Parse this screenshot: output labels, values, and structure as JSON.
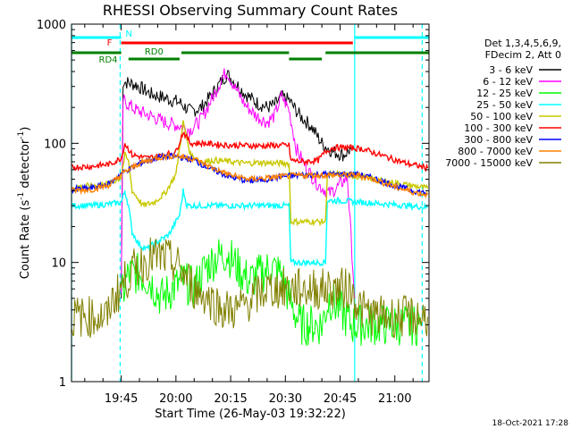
{
  "chart_data": {
    "type": "line",
    "title": "RHESSI Observing Summary Count Rates",
    "xlabel": "Start Time (26-May-03 19:32:22)",
    "ylabel_main": "Count Rate (s",
    "ylabel_sup1": "-1",
    "ylabel_mid": " detector",
    "ylabel_sup2": "-1",
    "ylabel_end": ")",
    "y_scale": "log",
    "ylim": [
      1,
      1000
    ],
    "x_range_minutes": [
      -13.63,
      84.37
    ],
    "x_tick_labels": [
      {
        "label": "19:45",
        "t": 0
      },
      {
        "label": "20:00",
        "t": 15
      },
      {
        "label": "20:15",
        "t": 30
      },
      {
        "label": "20:30",
        "t": 45
      },
      {
        "label": "20:45",
        "t": 60
      },
      {
        "label": "21:00",
        "t": 75
      }
    ],
    "y_tick_labels": [
      {
        "label": "1",
        "v": 1
      },
      {
        "label": "10",
        "v": 10
      },
      {
        "label": "100",
        "v": 100
      },
      {
        "label": "1000",
        "v": 1000
      }
    ],
    "legend_header": [
      "Det 1,3,4,5,6,9,",
      "FDecim 2, Att 0"
    ],
    "series": [
      {
        "name": "3 - 6 keV",
        "color": "#000000",
        "points": [
          [
            0,
            5
          ],
          [
            0.5,
            330
          ],
          [
            4,
            310
          ],
          [
            8,
            260
          ],
          [
            12,
            240
          ],
          [
            16,
            220
          ],
          [
            19,
            185
          ],
          [
            22,
            200
          ],
          [
            25,
            260
          ],
          [
            28,
            350
          ],
          [
            29,
            380
          ],
          [
            31,
            330
          ],
          [
            34,
            260
          ],
          [
            37,
            220
          ],
          [
            40,
            200
          ],
          [
            42,
            210
          ],
          [
            44,
            245
          ],
          [
            46,
            230
          ],
          [
            49,
            170
          ],
          [
            52,
            140
          ],
          [
            55,
            100
          ],
          [
            58,
            85
          ],
          [
            61,
            80
          ],
          [
            63,
            90
          ]
        ]
      },
      {
        "name": "6 - 12 keV",
        "color": "#ff00ff",
        "points": [
          [
            0,
            5
          ],
          [
            0.5,
            230
          ],
          [
            4,
            190
          ],
          [
            8,
            170
          ],
          [
            12,
            150
          ],
          [
            16,
            140
          ],
          [
            19,
            130
          ],
          [
            22,
            160
          ],
          [
            25,
            240
          ],
          [
            28,
            370
          ],
          [
            29,
            400
          ],
          [
            31,
            300
          ],
          [
            34,
            210
          ],
          [
            37,
            170
          ],
          [
            40,
            150
          ],
          [
            42,
            170
          ],
          [
            44,
            250
          ],
          [
            46,
            190
          ],
          [
            48,
            90
          ],
          [
            51,
            60
          ],
          [
            54,
            45
          ],
          [
            57,
            38
          ],
          [
            59,
            42
          ],
          [
            62,
            52
          ],
          [
            64,
            5
          ]
        ]
      },
      {
        "name": "12 - 25 keV",
        "color": "#00ff00",
        "points": [
          [
            0,
            5
          ],
          [
            2,
            8
          ],
          [
            5,
            8
          ],
          [
            8,
            7
          ],
          [
            11,
            5
          ],
          [
            14,
            6
          ],
          [
            17,
            7
          ],
          [
            20,
            6
          ],
          [
            23,
            9
          ],
          [
            26,
            11
          ],
          [
            29,
            12
          ],
          [
            32,
            9
          ],
          [
            35,
            7
          ],
          [
            38,
            8
          ],
          [
            41,
            9
          ],
          [
            44,
            8
          ],
          [
            46,
            5
          ],
          [
            49,
            3
          ],
          [
            52,
            3
          ],
          [
            55,
            3
          ],
          [
            57,
            5
          ],
          [
            60,
            4
          ],
          [
            63,
            3
          ],
          [
            66,
            3
          ],
          [
            70,
            3
          ],
          [
            74,
            3
          ],
          [
            78,
            3
          ],
          [
            82,
            3
          ]
        ]
      },
      {
        "name": "25 - 50 keV",
        "color": "#00ffff",
        "points": [
          [
            -13.5,
            30
          ],
          [
            -8,
            30
          ],
          [
            -3,
            31
          ],
          [
            0,
            32
          ],
          [
            1,
            40
          ],
          [
            2,
            30
          ],
          [
            3,
            18
          ],
          [
            5,
            14
          ],
          [
            7,
            13
          ],
          [
            10,
            15
          ],
          [
            13,
            17
          ],
          [
            16,
            25
          ],
          [
            17,
            40
          ],
          [
            18,
            30
          ],
          [
            20,
            30
          ],
          [
            24,
            30
          ],
          [
            28,
            30
          ],
          [
            32,
            30
          ],
          [
            36,
            30
          ],
          [
            40,
            30
          ],
          [
            44,
            30
          ],
          [
            46,
            30
          ],
          [
            46.5,
            10
          ],
          [
            50,
            10
          ],
          [
            54,
            10
          ],
          [
            56,
            10
          ],
          [
            56.5,
            33
          ],
          [
            60,
            33
          ],
          [
            66,
            32
          ],
          [
            72,
            31
          ],
          [
            78,
            30
          ],
          [
            84,
            29
          ]
        ]
      },
      {
        "name": "50 - 100 keV",
        "color": "#c8c800",
        "points": [
          [
            -13.5,
            43
          ],
          [
            -8,
            44
          ],
          [
            -3,
            46
          ],
          [
            0,
            52
          ],
          [
            1,
            80
          ],
          [
            2,
            70
          ],
          [
            3,
            40
          ],
          [
            6,
            30
          ],
          [
            9,
            32
          ],
          [
            12,
            38
          ],
          [
            15,
            55
          ],
          [
            17,
            150
          ],
          [
            19,
            80
          ],
          [
            22,
            70
          ],
          [
            26,
            72
          ],
          [
            30,
            70
          ],
          [
            34,
            68
          ],
          [
            38,
            69
          ],
          [
            42,
            68
          ],
          [
            46,
            68
          ],
          [
            46.5,
            22
          ],
          [
            51,
            22
          ],
          [
            54,
            22
          ],
          [
            56,
            22
          ],
          [
            56.5,
            55
          ],
          [
            60,
            55
          ],
          [
            66,
            52
          ],
          [
            72,
            48
          ],
          [
            78,
            45
          ],
          [
            84,
            42
          ]
        ]
      },
      {
        "name": "100 - 300 keV",
        "color": "#ff0000",
        "points": [
          [
            -13.5,
            63
          ],
          [
            -8,
            64
          ],
          [
            -3,
            67
          ],
          [
            0,
            75
          ],
          [
            1,
            100
          ],
          [
            3,
            80
          ],
          [
            7,
            75
          ],
          [
            12,
            80
          ],
          [
            15,
            85
          ],
          [
            17,
            125
          ],
          [
            19,
            100
          ],
          [
            22,
            100
          ],
          [
            26,
            98
          ],
          [
            30,
            96
          ],
          [
            34,
            96
          ],
          [
            38,
            95
          ],
          [
            42,
            96
          ],
          [
            46,
            96
          ],
          [
            46.5,
            72
          ],
          [
            50,
            70
          ],
          [
            54,
            72
          ],
          [
            56,
            85
          ],
          [
            58,
            92
          ],
          [
            62,
            92
          ],
          [
            66,
            90
          ],
          [
            72,
            78
          ],
          [
            78,
            68
          ],
          [
            84,
            62
          ]
        ]
      },
      {
        "name": "300 - 800 keV",
        "color": "#0000ff",
        "points": [
          [
            -13.5,
            41
          ],
          [
            -8,
            42
          ],
          [
            -3,
            46
          ],
          [
            0,
            56
          ],
          [
            5,
            68
          ],
          [
            10,
            76
          ],
          [
            15,
            78
          ],
          [
            20,
            72
          ],
          [
            25,
            60
          ],
          [
            30,
            52
          ],
          [
            35,
            48
          ],
          [
            40,
            50
          ],
          [
            45,
            53
          ],
          [
            50,
            54
          ],
          [
            55,
            55
          ],
          [
            60,
            55
          ],
          [
            65,
            55
          ],
          [
            70,
            50
          ],
          [
            75,
            44
          ],
          [
            80,
            40
          ],
          [
            84,
            38
          ]
        ]
      },
      {
        "name": "800 - 7000 keV",
        "color": "#ff8000",
        "points": [
          [
            -13.5,
            40
          ],
          [
            -8,
            41
          ],
          [
            -3,
            45
          ],
          [
            0,
            55
          ],
          [
            5,
            68
          ],
          [
            10,
            76
          ],
          [
            15,
            79
          ],
          [
            20,
            74
          ],
          [
            25,
            62
          ],
          [
            30,
            54
          ],
          [
            35,
            50
          ],
          [
            40,
            51
          ],
          [
            45,
            53
          ],
          [
            50,
            54
          ],
          [
            55,
            54
          ],
          [
            60,
            54
          ],
          [
            65,
            54
          ],
          [
            70,
            49
          ],
          [
            75,
            43
          ],
          [
            80,
            39
          ],
          [
            84,
            37
          ]
        ]
      },
      {
        "name": "7000 - 15000 keV",
        "color": "#808000",
        "points": [
          [
            -13.5,
            3.5
          ],
          [
            -6,
            3.5
          ],
          [
            -3.5,
            3.5
          ],
          [
            -3,
            4.5
          ],
          [
            -1,
            5.5
          ],
          [
            1,
            7
          ],
          [
            4,
            9
          ],
          [
            8,
            11
          ],
          [
            12,
            11
          ],
          [
            16,
            9
          ],
          [
            20,
            6
          ],
          [
            24,
            5
          ],
          [
            28,
            4
          ],
          [
            32,
            4
          ],
          [
            36,
            5
          ],
          [
            40,
            6
          ],
          [
            44,
            6
          ],
          [
            48,
            6
          ],
          [
            52,
            6
          ],
          [
            56,
            6
          ],
          [
            60,
            6
          ],
          [
            63,
            6
          ],
          [
            64,
            5
          ],
          [
            66,
            4
          ],
          [
            70,
            3.5
          ],
          [
            76,
            3.5
          ],
          [
            84,
            3.5
          ]
        ]
      }
    ],
    "flags": [
      {
        "label": "N",
        "color": "#00ffff",
        "segments": [
          [
            -13.6,
            0
          ],
          [
            64,
            84.4
          ]
        ]
      },
      {
        "label": "F",
        "color": "#ff0000",
        "segments": [
          [
            0,
            63.5
          ]
        ]
      },
      {
        "label": "RD0",
        "color": "#008000",
        "segments": [
          [
            -13.6,
            0
          ],
          [
            16.5,
            46
          ],
          [
            56,
            84.4
          ]
        ]
      },
      {
        "label": "RD4",
        "color": "#008000",
        "segments": [
          [
            2,
            16
          ],
          [
            46,
            55
          ]
        ]
      }
    ],
    "vlines": [
      {
        "t": -13.6,
        "color": "#00ffff",
        "style": "solid"
      },
      {
        "t": -0.3,
        "color": "#00ffff",
        "style": "dashed"
      },
      {
        "t": 64,
        "color": "#00ffff",
        "style": "solid"
      },
      {
        "t": 82.5,
        "color": "#00ffff",
        "style": "dashed"
      }
    ],
    "footer_date": "18-Oct-2021 17:28",
    "grid": false,
    "legend_placement": "right"
  }
}
